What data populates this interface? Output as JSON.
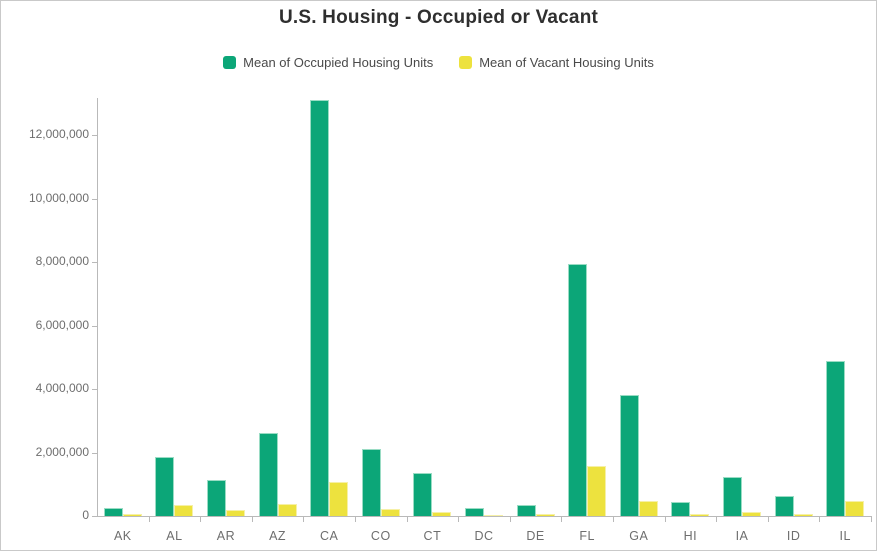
{
  "title": "U.S. Housing - Occupied or Vacant",
  "legend": {
    "occupied": {
      "label": "Mean of Occupied Housing Units",
      "color": "#0ca678"
    },
    "vacant": {
      "label": "Mean of Vacant Housing Units",
      "color": "#ede23e"
    }
  },
  "colors": {
    "occupied_bar": "#0ca678",
    "vacant_bar": "#ede23e",
    "axis_line": "#b9b9b9",
    "axis_text": "#6e6e6e",
    "title_text": "#2f2f2f"
  },
  "chart_data": {
    "type": "bar",
    "title": "U.S. Housing - Occupied or Vacant",
    "categories": [
      "AK",
      "AL",
      "AR",
      "AZ",
      "CA",
      "CO",
      "CT",
      "DC",
      "DE",
      "FL",
      "GA",
      "HI",
      "IA",
      "ID",
      "IL"
    ],
    "series": [
      {
        "name": "Mean of Occupied Housing Units",
        "color": "#0ca678",
        "values": [
          250000,
          1870000,
          1150000,
          2620000,
          13100000,
          2100000,
          1370000,
          260000,
          340000,
          7930000,
          3810000,
          440000,
          1240000,
          620000,
          4870000
        ]
      },
      {
        "name": "Mean of Vacant Housing Units",
        "color": "#ede23e",
        "values": [
          70000,
          350000,
          200000,
          370000,
          1080000,
          210000,
          120000,
          25000,
          50000,
          1580000,
          480000,
          50000,
          130000,
          70000,
          470000
        ]
      }
    ],
    "xlabel": "",
    "ylabel": "",
    "ylim": [
      0,
      13200000
    ],
    "yticks": [
      0,
      2000000,
      4000000,
      6000000,
      8000000,
      10000000,
      12000000
    ],
    "ytick_labels": [
      "0",
      "2,000,000",
      "4,000,000",
      "6,000,000",
      "8,000,000",
      "10,000,000",
      "12,000,000"
    ],
    "grid": false,
    "legend_position": "top"
  }
}
